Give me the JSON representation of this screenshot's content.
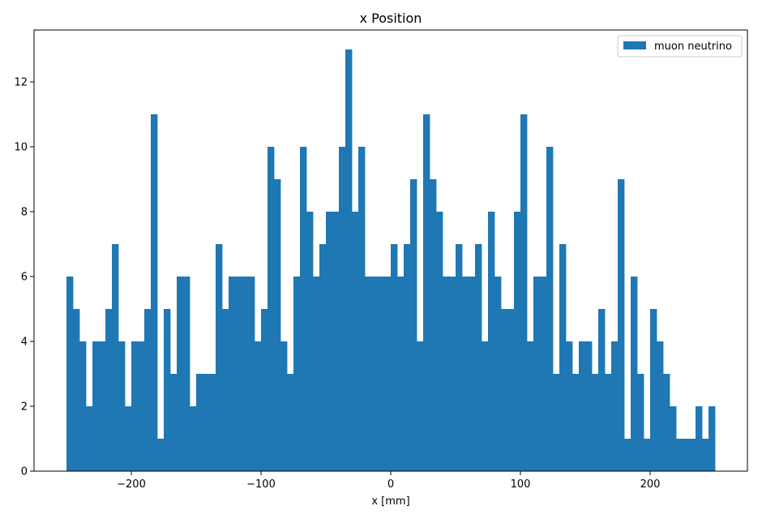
{
  "chart_data": {
    "type": "bar",
    "title": "x Position",
    "xlabel": "x [mm]",
    "ylabel": "",
    "xlim": [
      -250,
      250
    ],
    "ylim": [
      0,
      13.6
    ],
    "bin_edges_range": [
      -250,
      250
    ],
    "bin_count": 100,
    "x_ticks": [
      -200,
      -100,
      0,
      100,
      200
    ],
    "x_tick_labels": [
      "−200",
      "−100",
      "0",
      "100",
      "200"
    ],
    "y_ticks": [
      0,
      2,
      4,
      6,
      8,
      10,
      12
    ],
    "y_tick_labels": [
      "0",
      "2",
      "4",
      "6",
      "8",
      "10",
      "12"
    ],
    "grid": false,
    "legend": {
      "position": "top-right"
    },
    "series": [
      {
        "name": "muon neutrino",
        "color": "#1f77b4",
        "values": [
          6,
          5,
          4,
          2,
          4,
          4,
          5,
          7,
          4,
          2,
          4,
          4,
          5,
          11,
          1,
          5,
          3,
          6,
          6,
          2,
          3,
          3,
          3,
          7,
          5,
          6,
          6,
          6,
          6,
          4,
          5,
          10,
          9,
          4,
          3,
          6,
          10,
          8,
          6,
          7,
          8,
          8,
          10,
          13,
          8,
          10,
          6,
          6,
          6,
          6,
          7,
          6,
          7,
          9,
          4,
          11,
          9,
          8,
          6,
          6,
          7,
          6,
          6,
          7,
          4,
          8,
          6,
          5,
          5,
          8,
          11,
          4,
          6,
          6,
          10,
          3,
          7,
          4,
          3,
          4,
          4,
          3,
          5,
          3,
          4,
          9,
          1,
          6,
          3,
          1,
          5,
          4,
          3,
          2,
          1,
          1,
          1,
          2,
          1,
          2
        ]
      }
    ]
  }
}
